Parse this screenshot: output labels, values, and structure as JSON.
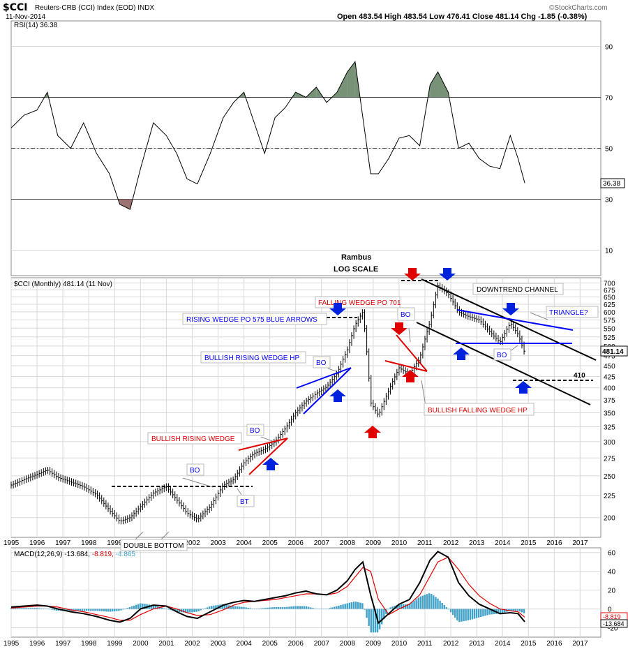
{
  "header": {
    "symbol": "$CCI",
    "title": "Reuters-CRB (CCI) Index (EOD)  INDX",
    "date": "11-Nov-2014",
    "ohlc": "Open 483.54  High 483.54  Low 476.41  Close 481.14  Chg -1.85 (-0.38%)",
    "credit": "©StockCharts.com",
    "center_title": "Rambus",
    "center_subtitle": "LOG SCALE"
  },
  "x_axis": {
    "years": [
      "1995",
      "1996",
      "1997",
      "1998",
      "1999",
      "2000",
      "2001",
      "2002",
      "2003",
      "2004",
      "2005",
      "2006",
      "2007",
      "2008",
      "2009",
      "2010",
      "2011",
      "2012",
      "2013",
      "2014",
      "2015",
      "2016",
      "2017"
    ]
  },
  "chart_data": [
    {
      "type": "line",
      "panel": "RSI",
      "legend": "RSI(14) 36.38",
      "last_value_label": "36.38",
      "ylim": [
        0,
        100
      ],
      "y_ticks": [
        10,
        30,
        50,
        70,
        90
      ],
      "levels": [
        30,
        50,
        70
      ],
      "x": [
        1995.0,
        1995.5,
        1996.0,
        1996.4,
        1996.8,
        1997.3,
        1997.8,
        1998.3,
        1998.8,
        1999.2,
        1999.6,
        2000.0,
        2000.5,
        2001.0,
        2001.4,
        2001.8,
        2002.2,
        2002.7,
        2003.2,
        2003.6,
        2004.0,
        2004.4,
        2004.8,
        2005.2,
        2005.6,
        2006.0,
        2006.4,
        2006.8,
        2007.2,
        2007.6,
        2008.0,
        2008.3,
        2008.6,
        2008.9,
        2009.2,
        2009.6,
        2010.0,
        2010.4,
        2010.8,
        2011.2,
        2011.5,
        2011.9,
        2012.3,
        2012.7,
        2013.1,
        2013.5,
        2013.9,
        2014.3,
        2014.6,
        2014.86
      ],
      "y": [
        58,
        63,
        65,
        72,
        55,
        50,
        60,
        48,
        40,
        28,
        26,
        42,
        60,
        55,
        48,
        38,
        36,
        48,
        62,
        68,
        72,
        60,
        48,
        62,
        66,
        72,
        70,
        74,
        68,
        72,
        80,
        84,
        62,
        40,
        40,
        46,
        54,
        55,
        51,
        75,
        80,
        72,
        50,
        52,
        46,
        43,
        42,
        55,
        46,
        36.38
      ]
    },
    {
      "type": "line",
      "panel": "Price",
      "legend": "$CCI (Monthly) 481.14 (11 Nov)",
      "last_value_label": "481.14",
      "scale": "log",
      "ylim": [
        180,
        720
      ],
      "y_ticks": [
        200,
        225,
        250,
        275,
        300,
        325,
        350,
        375,
        400,
        425,
        450,
        475,
        500,
        525,
        550,
        575,
        600,
        625,
        650,
        675,
        700
      ],
      "x": [
        1995.0,
        1995.5,
        1996.0,
        1996.4,
        1996.8,
        1997.3,
        1997.8,
        1998.3,
        1998.8,
        1999.2,
        1999.6,
        2000.0,
        2000.5,
        2001.0,
        2001.4,
        2001.8,
        2002.2,
        2002.7,
        2003.2,
        2003.6,
        2004.0,
        2004.4,
        2004.8,
        2005.2,
        2005.6,
        2006.0,
        2006.4,
        2006.8,
        2007.2,
        2007.6,
        2008.0,
        2008.3,
        2008.6,
        2008.9,
        2009.2,
        2009.6,
        2010.0,
        2010.4,
        2010.8,
        2011.2,
        2011.5,
        2011.9,
        2012.3,
        2012.7,
        2013.1,
        2013.5,
        2013.9,
        2014.3,
        2014.6,
        2014.86
      ],
      "y": [
        238,
        245,
        252,
        258,
        248,
        242,
        236,
        226,
        208,
        196,
        200,
        212,
        228,
        236,
        220,
        205,
        198,
        212,
        238,
        245,
        268,
        282,
        288,
        300,
        322,
        350,
        372,
        388,
        402,
        432,
        490,
        560,
        600,
        370,
        345,
        395,
        445,
        430,
        468,
        570,
        690,
        660,
        600,
        585,
        575,
        540,
        510,
        565,
        532,
        481.14
      ],
      "annotations": [
        "RISING WEDGE PO 575 BLUE ARROWS",
        "BULLISH RISING WEDGE HP",
        "BULLISH RISING WEDGE",
        "FALLING WEDGE PO 701",
        "DOWNTREND CHANNEL",
        "TRIANGLE?",
        "BULLISH FALLING WEDGE HP",
        "DOUBLE BOTTOM",
        "410"
      ],
      "label_b0": "BO",
      "label_bt": "BT"
    },
    {
      "type": "line",
      "panel": "MACD",
      "legend": "MACD(12,26,9) -13.684, -8.819, -4.865",
      "legend_parts": {
        "name": "MACD(12,26,9)",
        "macd": "-13.684,",
        "signal": "-8.819,",
        "histogram": "-4.865"
      },
      "value_labels": [
        "-8.819",
        "-13.684"
      ],
      "ylim": [
        -30,
        65
      ],
      "y_ticks": [
        -20,
        0,
        20,
        40,
        60
      ],
      "x": [
        1995.0,
        1995.5,
        1996.0,
        1996.4,
        1996.8,
        1997.3,
        1997.8,
        1998.3,
        1998.8,
        1999.2,
        1999.6,
        2000.0,
        2000.5,
        2001.0,
        2001.4,
        2001.8,
        2002.2,
        2002.7,
        2003.2,
        2003.6,
        2004.0,
        2004.4,
        2004.8,
        2005.2,
        2005.6,
        2006.0,
        2006.4,
        2006.8,
        2007.2,
        2007.6,
        2008.0,
        2008.3,
        2008.6,
        2008.9,
        2009.2,
        2009.6,
        2010.0,
        2010.4,
        2010.8,
        2011.2,
        2011.5,
        2011.9,
        2012.3,
        2012.7,
        2013.1,
        2013.5,
        2013.9,
        2014.3,
        2014.6,
        2014.86
      ],
      "series": [
        {
          "name": "MACD",
          "values": [
            2,
            3,
            4,
            3,
            0,
            -3,
            -5,
            -8,
            -12,
            -14,
            -10,
            0,
            4,
            3,
            -3,
            -8,
            -10,
            -3,
            4,
            7,
            9,
            8,
            10,
            12,
            14,
            17,
            19,
            16,
            15,
            20,
            30,
            42,
            50,
            15,
            -15,
            -5,
            5,
            10,
            28,
            52,
            61,
            55,
            28,
            14,
            5,
            0,
            -5,
            -4,
            -5,
            -13.684
          ]
        },
        {
          "name": "Signal",
          "values": [
            1,
            2,
            3,
            3,
            2,
            -1,
            -3,
            -6,
            -9,
            -12,
            -12,
            -6,
            0,
            3,
            0,
            -4,
            -7,
            -6,
            -1,
            4,
            7,
            8,
            9,
            10,
            12,
            14,
            16,
            16,
            15,
            17,
            24,
            34,
            44,
            40,
            10,
            -6,
            0,
            5,
            15,
            35,
            50,
            55,
            42,
            26,
            14,
            6,
            0,
            -2,
            -3,
            -8.819
          ]
        },
        {
          "name": "Histogram",
          "values": [
            1,
            1,
            1,
            0,
            -2,
            -2,
            -2,
            -2,
            -3,
            -2,
            2,
            6,
            4,
            0,
            -3,
            -4,
            -3,
            3,
            5,
            3,
            2,
            0,
            1,
            2,
            2,
            3,
            3,
            0,
            0,
            3,
            6,
            8,
            6,
            -25,
            -25,
            1,
            5,
            5,
            13,
            17,
            11,
            0,
            -14,
            -12,
            -9,
            -6,
            -5,
            -2,
            -2,
            -4.865
          ]
        }
      ]
    }
  ],
  "colors": {
    "grid": "#d8d8d8",
    "rsi_overbought_fill": "#5f7f5f",
    "rsi_oversold_fill": "#8b5a5a",
    "price_bar": "#000000",
    "histogram": "#3fa1c8",
    "macd_line": "#000000",
    "signal_line": "#e00000",
    "annotation_red": "#e00000",
    "annotation_blue": "#0000ff",
    "arrow_red": "#e00000",
    "arrow_blue": "#0022dd"
  }
}
